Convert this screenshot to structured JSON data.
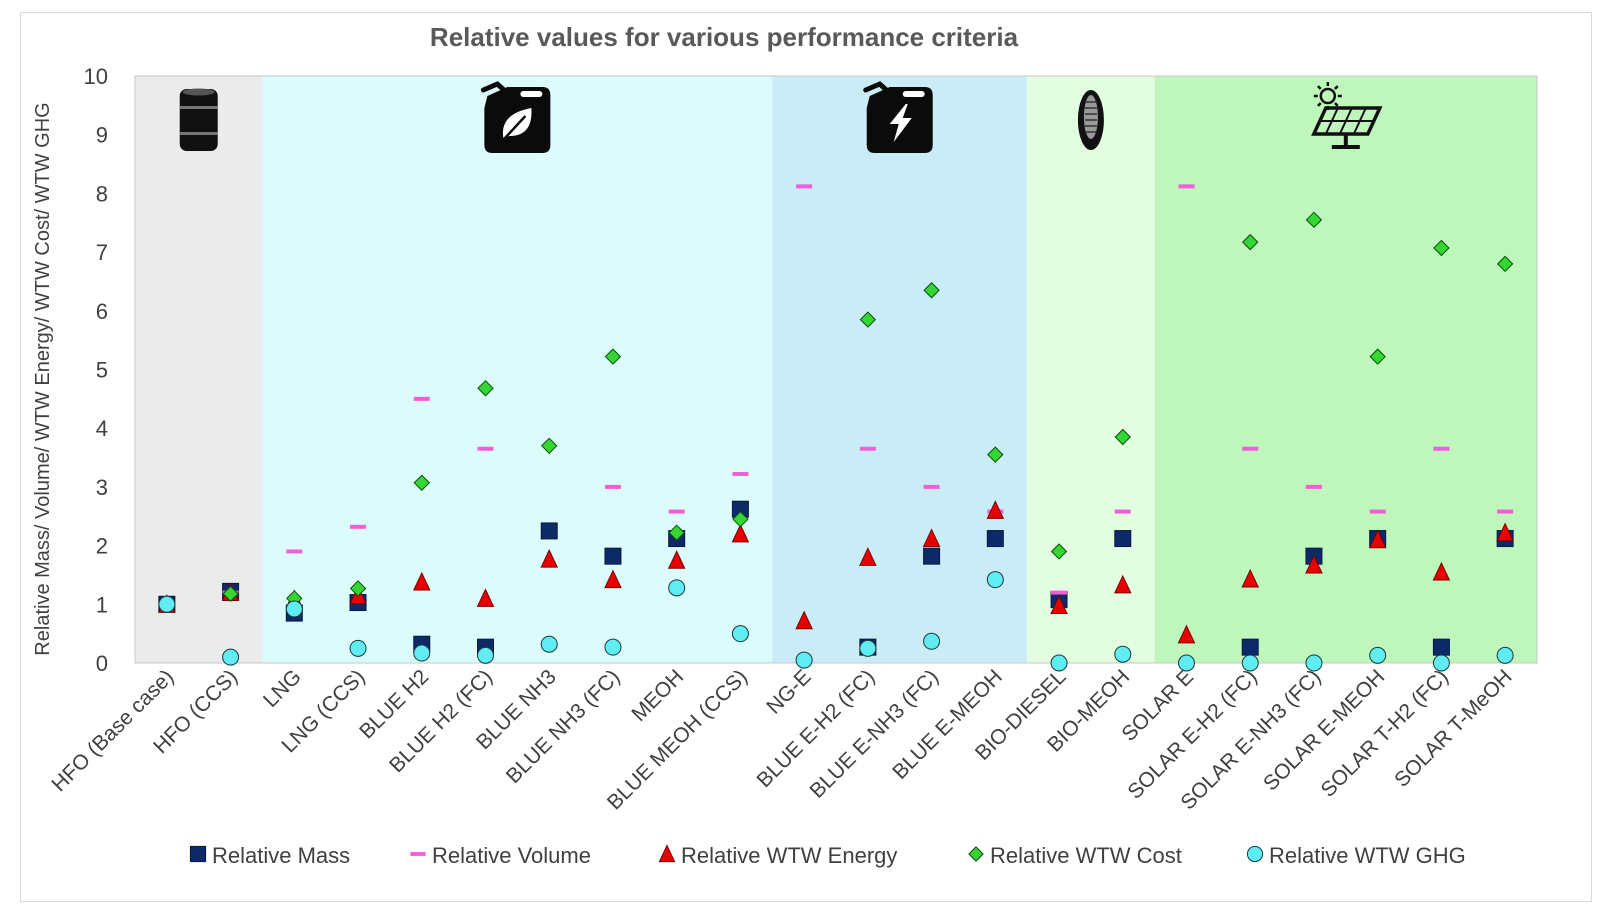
{
  "chart_data": {
    "type": "scatter",
    "title": "Relative values for various performance criteria",
    "ylabel": "Relative Mass/ Volume/ WTW Energy/ WTW Cost/ WTW GHG",
    "xlabel": "",
    "ylim": [
      0,
      10
    ],
    "yticks": [
      "0",
      "1",
      "2",
      "3",
      "4",
      "5",
      "6",
      "7",
      "8",
      "9",
      "10"
    ],
    "legend_position": "bottom",
    "categories": [
      "HFO (Base case)",
      "HFO (CCS)",
      "LNG",
      "LNG (CCS)",
      "BLUE H2",
      "BLUE H2 (FC)",
      "BLUE NH3",
      "BLUE NH3 (FC)",
      "MEOH",
      "BLUE MEOH (CCS)",
      "NG-E",
      "BLUE E-H2 (FC)",
      "BLUE E-NH3 (FC)",
      "BLUE E-MEOH",
      "BIO-DIESEL",
      "BIO-MEOH",
      "SOLAR E",
      "SOLAR E-H2 (FC)",
      "SOLAR E-NH3 (FC)",
      "SOLAR E-MEOH",
      "SOLAR T-H2 (FC)",
      "SOLAR T-MeOH"
    ],
    "regions": [
      {
        "name": "fossil",
        "icon": "oil-barrel-icon",
        "from": 0,
        "to": 1,
        "color": "#ebebeb"
      },
      {
        "name": "blue",
        "icon": "fuel-can-leaf-icon",
        "from": 2,
        "to": 9,
        "color": "#dcfcfc"
      },
      {
        "name": "blue-e",
        "icon": "fuel-can-bolt-icon",
        "from": 10,
        "to": 13,
        "color": "#c9ecf7"
      },
      {
        "name": "bio",
        "icon": "corn-icon",
        "from": 14,
        "to": 15,
        "color": "#e3fde0"
      },
      {
        "name": "solar",
        "icon": "solar-panel-icon",
        "from": 16,
        "to": 21,
        "color": "#bff6bc"
      }
    ],
    "series": [
      {
        "name": "Relative Mass",
        "marker": "square",
        "color": "#0d2a66",
        "values": [
          1.0,
          1.22,
          0.85,
          1.03,
          0.32,
          0.27,
          2.25,
          1.82,
          2.12,
          2.62,
          null,
          0.27,
          1.82,
          2.12,
          1.08,
          2.12,
          null,
          0.27,
          1.82,
          2.12,
          0.27,
          2.12
        ]
      },
      {
        "name": "Relative Volume",
        "marker": "dash",
        "color": "#f05fd8",
        "values": [
          1.0,
          1.2,
          1.9,
          2.32,
          4.5,
          3.65,
          null,
          3.0,
          2.58,
          3.22,
          8.12,
          3.65,
          3.0,
          2.58,
          1.2,
          2.58,
          8.12,
          3.65,
          3.0,
          2.58,
          3.65,
          2.58
        ]
      },
      {
        "name": "Relative WTW Energy",
        "marker": "triangle",
        "color": "#e60000",
        "values": [
          1.0,
          1.2,
          1.08,
          1.15,
          1.38,
          1.1,
          1.77,
          1.42,
          1.75,
          2.2,
          0.72,
          1.8,
          2.12,
          2.6,
          0.98,
          1.33,
          0.48,
          1.43,
          1.67,
          2.1,
          1.55,
          2.22
        ]
      },
      {
        "name": "Relative WTW Cost",
        "marker": "diamond",
        "color": "#33d633",
        "values": [
          1.0,
          1.18,
          1.1,
          1.27,
          3.07,
          4.68,
          3.7,
          5.22,
          2.22,
          2.45,
          null,
          5.85,
          6.35,
          3.55,
          1.9,
          3.85,
          null,
          7.17,
          7.55,
          5.22,
          7.07,
          6.8
        ]
      },
      {
        "name": "Relative WTW GHG",
        "marker": "circle",
        "color": "#5fecf2",
        "values": [
          1.0,
          0.1,
          0.92,
          0.25,
          0.17,
          0.13,
          0.32,
          0.27,
          1.28,
          0.5,
          0.05,
          0.25,
          0.37,
          1.42,
          0.0,
          0.15,
          0.0,
          0.0,
          0.0,
          0.13,
          0.0,
          0.13
        ]
      }
    ]
  }
}
